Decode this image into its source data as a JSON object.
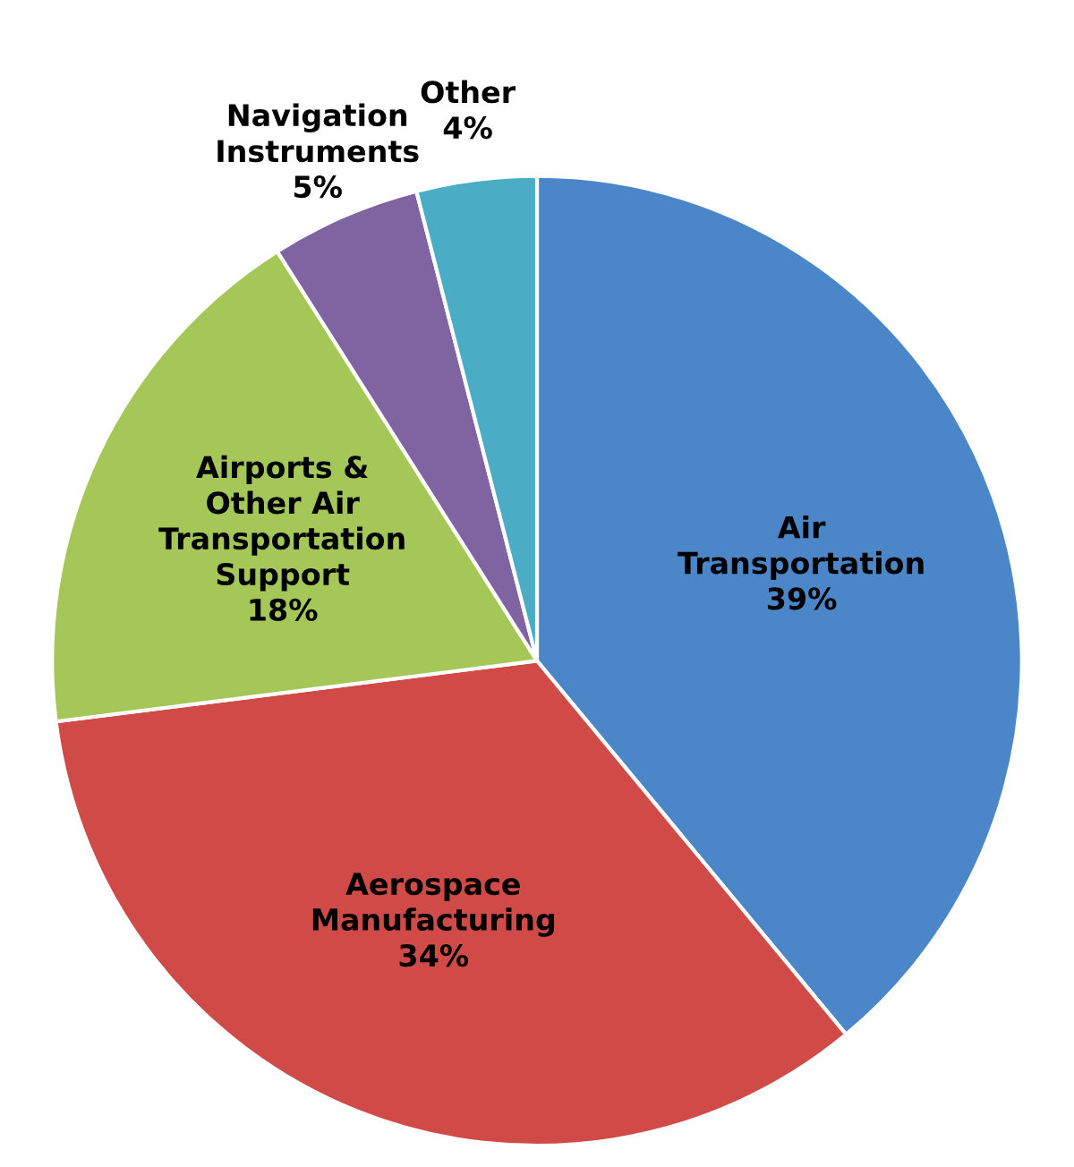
{
  "chart_data": {
    "type": "pie",
    "categories": [
      "Air\nTransportation",
      "Aerospace\nManufacturing",
      "Airports &\nOther Air\nTransportation\nSupport",
      "Navigation\nInstruments",
      "Other"
    ],
    "values": [
      39,
      34,
      18,
      5,
      4
    ],
    "value_labels": [
      "39%",
      "34%",
      "18%",
      "5%",
      "4%"
    ],
    "colors": [
      "#4a86c8",
      "#d04b47",
      "#a4c757",
      "#8064a2",
      "#4bacc6"
    ]
  }
}
